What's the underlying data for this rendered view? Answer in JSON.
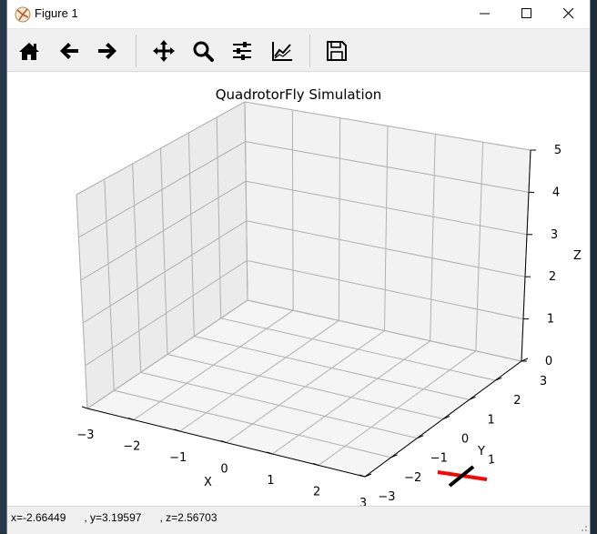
{
  "window": {
    "title": "Figure 1"
  },
  "toolbar": {
    "buttons": [
      {
        "name": "home",
        "icon": "home-icon"
      },
      {
        "name": "back",
        "icon": "arrow-left-icon"
      },
      {
        "name": "forward",
        "icon": "arrow-right-icon"
      },
      {
        "name": "pan",
        "icon": "move-icon"
      },
      {
        "name": "zoom",
        "icon": "magnifier-icon"
      },
      {
        "name": "configure",
        "icon": "sliders-icon"
      },
      {
        "name": "edit-axis",
        "icon": "line-chart-icon"
      },
      {
        "name": "save",
        "icon": "floppy-icon"
      }
    ]
  },
  "chart_data": {
    "type": "scatter3d",
    "title": "QuadrotorFly Simulation",
    "xlabel": "X",
    "ylabel": "Y",
    "zlabel": "Z",
    "xlim": [
      -3,
      3
    ],
    "ylim": [
      -3,
      3
    ],
    "zlim": [
      0,
      5
    ],
    "xticks": [
      "−3",
      "−2",
      "−1",
      "0",
      "1",
      "2",
      "3"
    ],
    "yticks": [
      "−3",
      "−2",
      "−1",
      "0",
      "1",
      "2",
      "3"
    ],
    "zticks": [
      "0",
      "1",
      "2",
      "3",
      "4",
      "5"
    ],
    "grid": true,
    "quadrotor_arms": [
      {
        "color": "#ff0000"
      },
      {
        "color": "#000000"
      }
    ],
    "stray_label": "1"
  },
  "status": {
    "coords": "x=-2.66449      , y=3.19597      , z=2.56703"
  },
  "colors": {
    "pane": "#f2f2f2",
    "grid": "#b0b0b0",
    "axis": "#000000"
  }
}
